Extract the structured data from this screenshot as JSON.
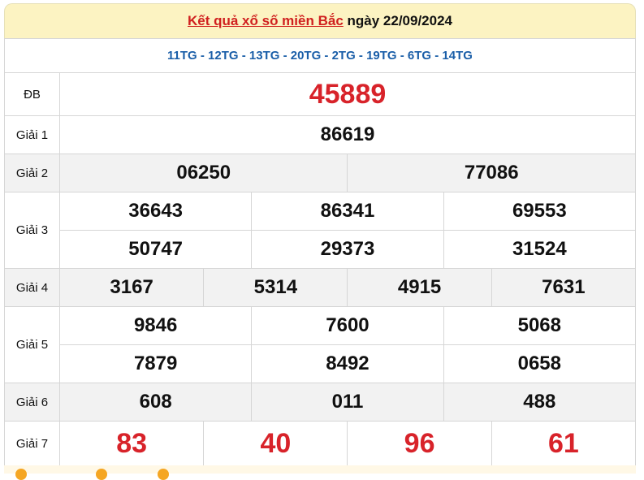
{
  "header": {
    "title_link": "Kết quả xổ số miền Bắc",
    "date_text": "ngày 22/09/2024"
  },
  "codes": "11TG - 12TG - 13TG - 20TG - 2TG - 19TG - 6TG - 14TG",
  "prizes": {
    "db": {
      "label": "ĐB",
      "values": [
        "45889"
      ]
    },
    "g1": {
      "label": "Giải 1",
      "values": [
        "86619"
      ]
    },
    "g2": {
      "label": "Giải 2",
      "values": [
        "06250",
        "77086"
      ]
    },
    "g3": {
      "label": "Giải 3",
      "values": [
        "36643",
        "86341",
        "69553",
        "50747",
        "29373",
        "31524"
      ]
    },
    "g4": {
      "label": "Giải 4",
      "values": [
        "3167",
        "5314",
        "4915",
        "7631"
      ]
    },
    "g5": {
      "label": "Giải 5",
      "values": [
        "9846",
        "7600",
        "5068",
        "7879",
        "8492",
        "0658"
      ]
    },
    "g6": {
      "label": "Giải 6",
      "values": [
        "608",
        "011",
        "488"
      ]
    },
    "g7": {
      "label": "Giải 7",
      "values": [
        "83",
        "40",
        "96",
        "61"
      ]
    }
  },
  "colors": {
    "accent_red": "#d8232a",
    "code_blue": "#1a5ea8",
    "header_bg": "#fcf3c2"
  }
}
